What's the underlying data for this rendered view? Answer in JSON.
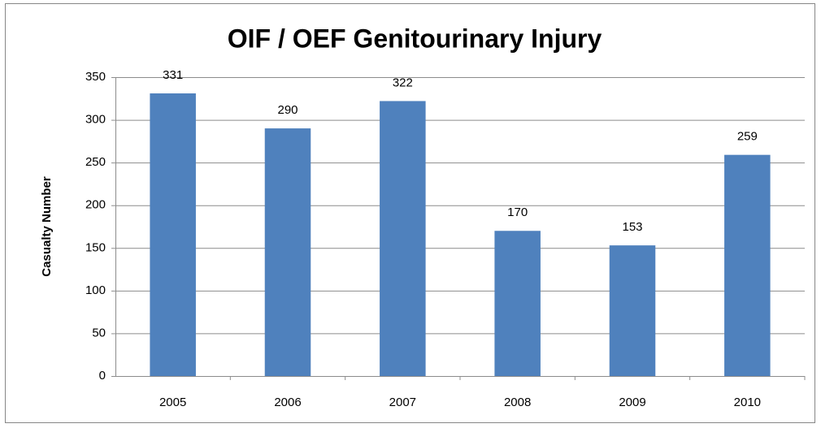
{
  "chart_data": {
    "type": "bar",
    "title": "OIF / OEF Genitourinary Injury",
    "y_label": "Casualty Number",
    "categories": [
      "2005",
      "2006",
      "2007",
      "2008",
      "2009",
      "2010"
    ],
    "values": [
      331,
      290,
      322,
      170,
      153,
      259
    ],
    "color": "#4f81bd",
    "ylim": [
      0,
      350
    ],
    "yticks": [
      0,
      50,
      100,
      150,
      200,
      250,
      300,
      350
    ],
    "grid": true
  }
}
